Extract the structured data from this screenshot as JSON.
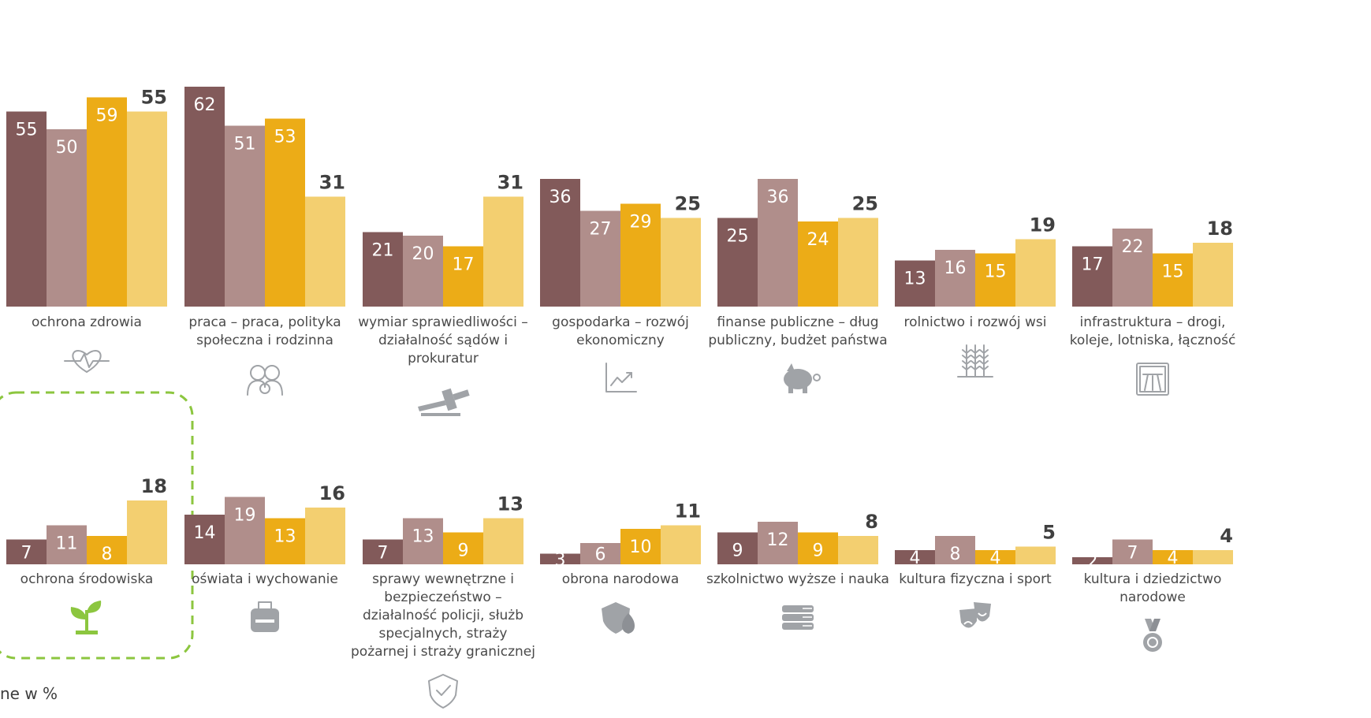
{
  "footnote": "ne w %",
  "colors": {
    "series_1": "#825a5a",
    "series_2": "#b08e8b",
    "series_3": "#ecac17",
    "series_4": "#f3cf70",
    "icon": "#a0a3a7",
    "highlight": "#8cc63f"
  },
  "chart_data": [
    {
      "type": "bar",
      "category": "ochrona zdrowia",
      "label_lines": [
        "ochrona zdrowia"
      ],
      "icon": "heartbeat-icon",
      "series": [
        {
          "values": [
            55
          ]
        },
        {
          "values": [
            50
          ]
        },
        {
          "values": [
            59
          ]
        },
        {
          "values": [
            55
          ]
        }
      ]
    },
    {
      "type": "bar",
      "category": "praca – praca, polityka społeczna i rodzinna",
      "label_lines": [
        "praca – praca, polityka",
        "społeczna i rodzinna"
      ],
      "icon": "family-icon",
      "series": [
        {
          "values": [
            62
          ]
        },
        {
          "values": [
            51
          ]
        },
        {
          "values": [
            53
          ]
        },
        {
          "values": [
            31
          ]
        }
      ]
    },
    {
      "type": "bar",
      "category": "wymiar sprawiedliwości – działalność sądów i prokuratur",
      "label_lines": [
        "wymiar sprawiedliwości –",
        "działalność sądów i",
        "prokuratur"
      ],
      "icon": "gavel-icon",
      "series": [
        {
          "values": [
            21
          ]
        },
        {
          "values": [
            20
          ]
        },
        {
          "values": [
            17
          ]
        },
        {
          "values": [
            31
          ]
        }
      ]
    },
    {
      "type": "bar",
      "category": "gospodarka – rozwój ekonomiczny",
      "label_lines": [
        "gospodarka – rozwój",
        "ekonomiczny"
      ],
      "icon": "trend-chart-icon",
      "series": [
        {
          "values": [
            36
          ]
        },
        {
          "values": [
            27
          ]
        },
        {
          "values": [
            29
          ]
        },
        {
          "values": [
            25
          ]
        }
      ]
    },
    {
      "type": "bar",
      "category": "finanse publiczne – dług publiczny, budżet państwa",
      "label_lines": [
        "finanse publiczne – dług",
        "publiczny, budżet państwa"
      ],
      "icon": "piggy-bank-icon",
      "series": [
        {
          "values": [
            25
          ]
        },
        {
          "values": [
            36
          ]
        },
        {
          "values": [
            24
          ]
        },
        {
          "values": [
            25
          ]
        }
      ]
    },
    {
      "type": "bar",
      "category": "rolnictwo i rozwój wsi",
      "label_lines": [
        "rolnictwo i rozwój wsi"
      ],
      "icon": "wheat-icon",
      "series": [
        {
          "values": [
            13
          ]
        },
        {
          "values": [
            16
          ]
        },
        {
          "values": [
            15
          ]
        },
        {
          "values": [
            19
          ]
        }
      ]
    },
    {
      "type": "bar",
      "category": "infrastruktura – drogi, koleje, lotniska, łączność",
      "label_lines": [
        "infrastruktura – drogi,",
        "koleje, lotniska, łączność"
      ],
      "icon": "road-sign-icon",
      "series": [
        {
          "values": [
            17
          ]
        },
        {
          "values": [
            22
          ]
        },
        {
          "values": [
            15
          ]
        },
        {
          "values": [
            18
          ]
        }
      ]
    },
    {
      "type": "bar",
      "category": "ochrona środowiska",
      "label_lines": [
        "ochrona środowiska"
      ],
      "icon": "plant-icon",
      "highlighted": true,
      "series": [
        {
          "values": [
            7
          ]
        },
        {
          "values": [
            11
          ]
        },
        {
          "values": [
            8
          ]
        },
        {
          "values": [
            18
          ]
        }
      ]
    },
    {
      "type": "bar",
      "category": "oświata i wychowanie",
      "label_lines": [
        "oświata i wychowanie"
      ],
      "icon": "backpack-icon",
      "series": [
        {
          "values": [
            14
          ]
        },
        {
          "values": [
            19
          ]
        },
        {
          "values": [
            13
          ]
        },
        {
          "values": [
            16
          ]
        }
      ]
    },
    {
      "type": "bar",
      "category": "sprawy wewnętrzne i bezpieczeństwo – działalność policji, służb specjalnych, straży pożarnej i straży granicznej",
      "label_lines": [
        "sprawy wewnętrzne i",
        "bezpieczeństwo –",
        "działalność policji, służb",
        "specjalnych, straży",
        "pożarnej i straży granicznej"
      ],
      "icon": "shield-check-icon",
      "series": [
        {
          "values": [
            7
          ]
        },
        {
          "values": [
            13
          ]
        },
        {
          "values": [
            9
          ]
        },
        {
          "values": [
            13
          ]
        }
      ]
    },
    {
      "type": "bar",
      "category": "obrona narodowa",
      "label_lines": [
        "obrona narodowa"
      ],
      "icon": "shield-fire-icon",
      "series": [
        {
          "values": [
            3
          ]
        },
        {
          "values": [
            6
          ]
        },
        {
          "values": [
            10
          ]
        },
        {
          "values": [
            11
          ]
        }
      ]
    },
    {
      "type": "bar",
      "category": "szkolnictwo wyższe i nauka",
      "label_lines": [
        "szkolnictwo wyższe i nauka"
      ],
      "icon": "books-icon",
      "series": [
        {
          "values": [
            9
          ]
        },
        {
          "values": [
            12
          ]
        },
        {
          "values": [
            9
          ]
        },
        {
          "values": [
            8
          ]
        }
      ]
    },
    {
      "type": "bar",
      "category": "kultura fizyczna i sport",
      "label_lines": [
        "kultura fizyczna i sport"
      ],
      "icon": "theater-masks-icon",
      "series": [
        {
          "values": [
            4
          ]
        },
        {
          "values": [
            8
          ]
        },
        {
          "values": [
            4
          ]
        },
        {
          "values": [
            5
          ]
        }
      ]
    },
    {
      "type": "bar",
      "category": "kultura i dziedzictwo narodowe",
      "label_lines": [
        "kultura i dziedzictwo",
        "narodowe"
      ],
      "icon": "medal-icon",
      "series": [
        {
          "values": [
            2
          ]
        },
        {
          "values": [
            7
          ]
        },
        {
          "values": [
            4
          ]
        },
        {
          "values": [
            4
          ]
        }
      ]
    }
  ]
}
